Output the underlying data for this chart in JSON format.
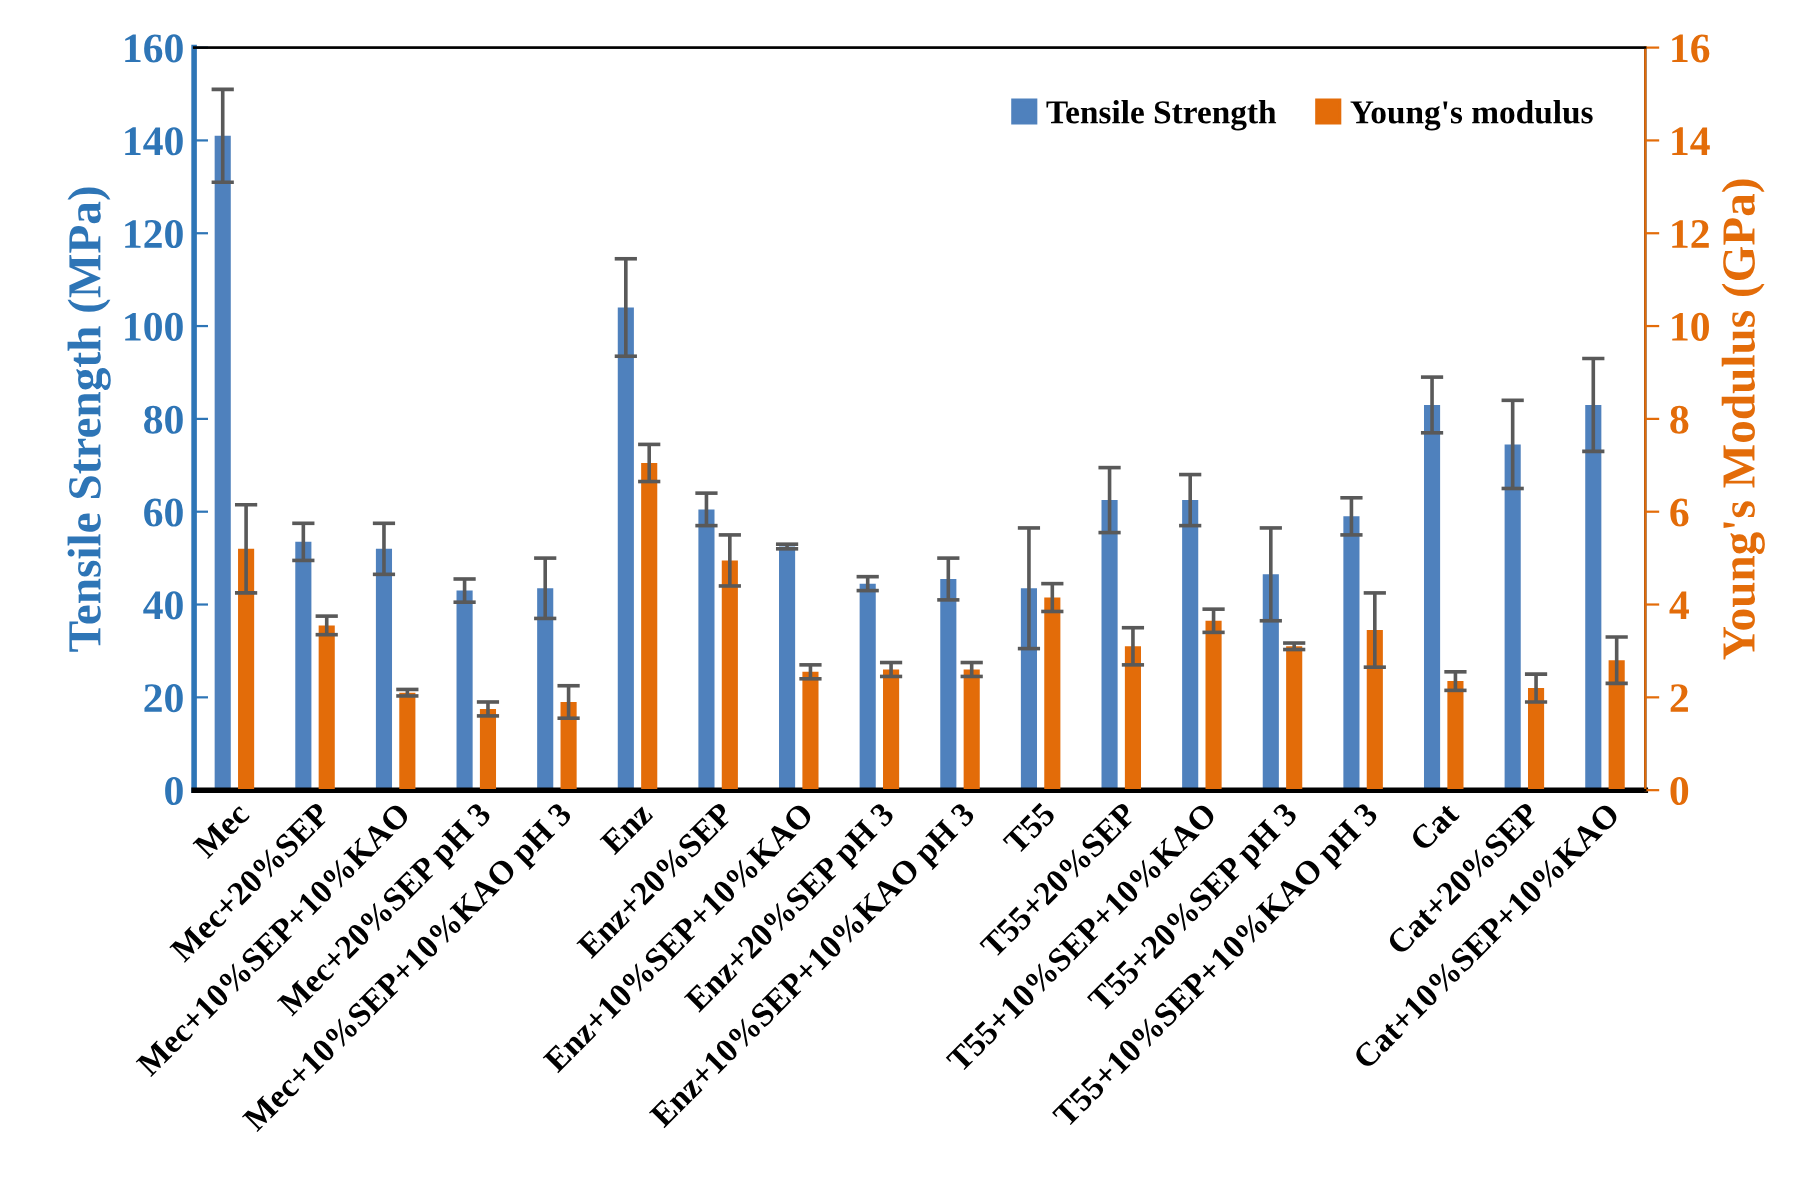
{
  "chart_data": {
    "type": "bar",
    "categories": [
      "Mec",
      "Mec+20%SEP",
      "Mec+10%SEP+10%KAO",
      "Mec+20%SEP pH 3",
      "Mec+10%SEP+10%KAO pH 3",
      "Enz",
      "Enz+20%SEP",
      "Enz+10%SEP+10%KAO",
      "Enz+20%SEP pH 3",
      "Enz+10%SEP+10%KAO pH 3",
      "T55",
      "T55+20%SEP",
      "T55+10%SEP+10%KAO",
      "T55+20%SEP pH 3",
      "T55+10%SEP+10%KAO pH 3",
      "Cat",
      "Cat+20%SEP",
      "Cat+10%SEP+10%KAO"
    ],
    "series": [
      {
        "name": "Tensile Strength",
        "color": "#4f81bd",
        "values": [
          141,
          53.5,
          52,
          43,
          43.5,
          104,
          60.5,
          52.5,
          44.5,
          45.5,
          43.5,
          62.5,
          62.5,
          46.5,
          59,
          83,
          74.5,
          83
        ],
        "errors": [
          10,
          4,
          5.5,
          2.5,
          6.5,
          10.5,
          3.5,
          0.5,
          1.5,
          4.5,
          13,
          7,
          5.5,
          10,
          4,
          6,
          9.5,
          10
        ]
      },
      {
        "name": "Young's modulus",
        "color": "#e36c09",
        "axis": "y2",
        "values": [
          5.2,
          3.55,
          2.1,
          1.75,
          1.9,
          7.05,
          4.95,
          2.55,
          2.6,
          2.6,
          4.15,
          3.1,
          3.65,
          3.1,
          3.45,
          2.35,
          2.2,
          2.8
        ],
        "errors": [
          0.95,
          0.2,
          0.07,
          0.15,
          0.35,
          0.4,
          0.55,
          0.15,
          0.15,
          0.15,
          0.3,
          0.4,
          0.25,
          0.07,
          0.8,
          0.2,
          0.3,
          0.5
        ]
      }
    ],
    "ylabel": "Tensile Strength (MPa)",
    "y2label": "Young's Modulus (GPa)",
    "ylim": [
      0,
      160
    ],
    "yticks": [
      0,
      20,
      40,
      60,
      80,
      100,
      120,
      140,
      160
    ],
    "y2lim": [
      0,
      16
    ],
    "y2ticks": [
      0,
      2,
      4,
      6,
      8,
      10,
      12,
      14,
      16
    ],
    "legend": "top right"
  }
}
